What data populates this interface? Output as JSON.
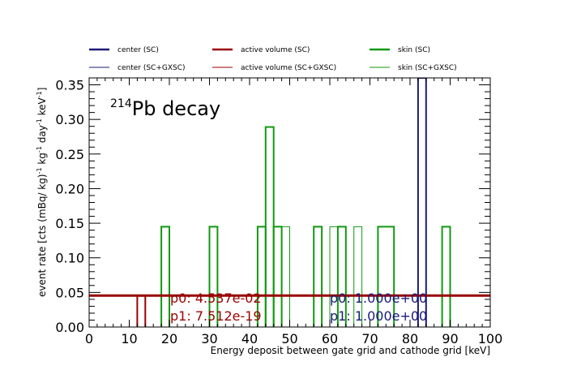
{
  "chart_data": {
    "type": "line",
    "title": "Pb decay",
    "title_superscript": "214",
    "xlabel": "Energy deposit between gate grid and cathode grid [keV]",
    "ylabel": "event rate [cts (mBq/ kg)",
    "ylabel_parts": [
      "event rate [cts (mBq/ kg)",
      "-1",
      " kg",
      "-1",
      " day",
      "-1",
      " keV",
      "-1",
      "]"
    ],
    "xlim": [
      0,
      100
    ],
    "ylim": [
      0,
      0.36
    ],
    "x_ticks": [
      0,
      10,
      20,
      30,
      40,
      50,
      60,
      70,
      80,
      90,
      100
    ],
    "x_tick_labels": [
      "0",
      "10",
      "20",
      "30",
      "40",
      "50",
      "60",
      "70",
      "80",
      "90",
      "100"
    ],
    "y_ticks": [
      0,
      0.05,
      0.1,
      0.15,
      0.2,
      0.25,
      0.3,
      0.35
    ],
    "y_tick_labels": [
      "0.00",
      "0.05",
      "0.10",
      "0.15",
      "0.20",
      "0.25",
      "0.30",
      "0.35"
    ],
    "grid": false,
    "legend_position": "top",
    "legend": [
      {
        "label": "center (SC)",
        "color": "#1a1a7a",
        "width": "thick"
      },
      {
        "label": "active volume (SC)",
        "color": "#990000",
        "width": "thick"
      },
      {
        "label": "skin (SC)",
        "color": "#119911",
        "width": "thick"
      },
      {
        "label": "center (SC+GXSC)",
        "color": "#1a1a7a",
        "width": "thin"
      },
      {
        "label": "active volume (SC+GXSC)",
        "color": "#990000",
        "width": "thin"
      },
      {
        "label": "skin (SC+GXSC)",
        "color": "#119911",
        "width": "thin"
      }
    ],
    "series": [
      {
        "name": "skin (SC)",
        "color": "#119911",
        "histogram_bins": [
          {
            "x0": 18,
            "x1": 20,
            "y": 0.145
          },
          {
            "x0": 30,
            "x1": 32,
            "y": 0.145
          },
          {
            "x0": 42,
            "x1": 44,
            "y": 0.145
          },
          {
            "x0": 44,
            "x1": 46,
            "y": 0.289
          },
          {
            "x0": 46,
            "x1": 48,
            "y": 0.145
          },
          {
            "x0": 56,
            "x1": 58,
            "y": 0.145
          },
          {
            "x0": 62,
            "x1": 64,
            "y": 0.145
          },
          {
            "x0": 72,
            "x1": 76,
            "y": 0.145
          },
          {
            "x0": 88,
            "x1": 90,
            "y": 0.145
          }
        ]
      },
      {
        "name": "skin (SC+GXSC)",
        "color": "#119911",
        "histogram_bins": [
          {
            "x0": 48,
            "x1": 50,
            "y": 0.145
          },
          {
            "x0": 60,
            "x1": 62,
            "y": 0.145
          },
          {
            "x0": 66,
            "x1": 68,
            "y": 0.145
          }
        ]
      },
      {
        "name": "center (SC)",
        "color": "#1a1a7a",
        "histogram_bins": [
          {
            "x0": 82,
            "x1": 84,
            "y": 0.36
          }
        ]
      },
      {
        "name": "active volume (SC)",
        "color": "#990000",
        "fit_level": 0.0454,
        "histogram_bins": [
          {
            "x0": 12,
            "x1": 14,
            "y": 0.045
          }
        ]
      }
    ],
    "fit_annotations": [
      {
        "lines": [
          "p0: 4.537e-02",
          "p1: 7.512e-19"
        ],
        "color": "#990000"
      },
      {
        "lines": [
          "p0: 1.000e+00",
          "p1: 1.000e+00"
        ],
        "color": "#1a1a7a"
      }
    ]
  }
}
